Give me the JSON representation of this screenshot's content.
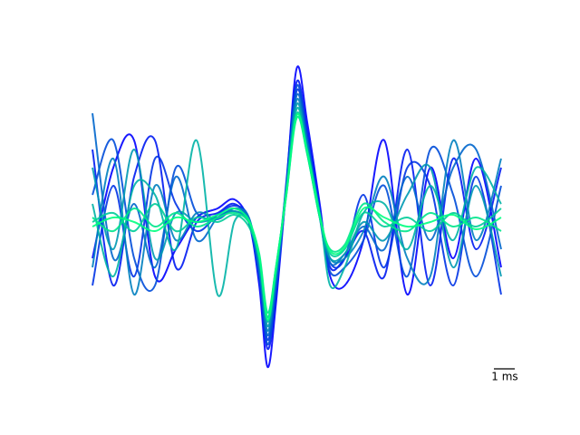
{
  "chart_data": {
    "type": "line",
    "x": [
      0,
      1.0,
      2.0,
      3.0,
      4.0,
      5.0,
      6.0,
      6.8,
      7.5,
      8.0,
      8.4,
      8.8,
      9.3,
      9.8,
      10.3,
      10.9,
      11.4,
      12.1,
      13.0,
      14.0,
      15.1,
      16.2,
      17.3,
      18.4,
      19.6
    ],
    "xlim": [
      0,
      19.6
    ],
    "ylim": [
      -200,
      200
    ],
    "scalebar": {
      "length": 1,
      "label": "1 ms"
    },
    "series": [
      {
        "color": "#0000ff",
        "values": [
          -40,
          60,
          90,
          -60,
          -30,
          5,
          15,
          25,
          0,
          -70,
          -160,
          -90,
          40,
          170,
          110,
          20,
          -60,
          -70,
          -20,
          90,
          -80,
          60,
          -40,
          70,
          -50
        ]
      },
      {
        "color": "#0019f2",
        "values": [
          80,
          -70,
          50,
          90,
          -50,
          0,
          10,
          20,
          0,
          -60,
          -140,
          -80,
          45,
          155,
          100,
          15,
          -50,
          -40,
          -10,
          -60,
          80,
          -70,
          70,
          -30,
          60
        ]
      },
      {
        "color": "#0033e6",
        "values": [
          -70,
          40,
          -60,
          70,
          20,
          -10,
          8,
          18,
          5,
          -55,
          -130,
          -70,
          40,
          145,
          95,
          10,
          -45,
          -40,
          30,
          -50,
          60,
          40,
          -70,
          50,
          -80
        ]
      },
      {
        "color": "#004cd9",
        "values": [
          30,
          90,
          -40,
          -70,
          60,
          10,
          5,
          15,
          0,
          -60,
          -135,
          -75,
          35,
          150,
          90,
          5,
          -55,
          -50,
          -20,
          40,
          -60,
          80,
          30,
          -60,
          40
        ]
      },
      {
        "color": "#0066cc",
        "values": [
          120,
          -40,
          20,
          -50,
          50,
          -20,
          5,
          12,
          0,
          -50,
          -125,
          -65,
          38,
          140,
          90,
          10,
          -45,
          -35,
          -5,
          -30,
          50,
          -20,
          60,
          80,
          -30
        ]
      },
      {
        "color": "#0080bf",
        "values": [
          -50,
          70,
          -80,
          40,
          -20,
          10,
          3,
          15,
          5,
          -50,
          -120,
          -60,
          40,
          135,
          85,
          10,
          -40,
          -40,
          -10,
          50,
          -40,
          -60,
          90,
          -20,
          70
        ]
      },
      {
        "color": "#0099b3",
        "values": [
          60,
          -30,
          80,
          -40,
          10,
          0,
          5,
          12,
          0,
          -45,
          -115,
          -60,
          35,
          130,
          80,
          5,
          -40,
          -35,
          0,
          -20,
          30,
          60,
          -50,
          40,
          -60
        ]
      },
      {
        "color": "#00b3a6",
        "values": [
          20,
          -60,
          40,
          30,
          -30,
          90,
          -80,
          0,
          0,
          -40,
          -110,
          -55,
          35,
          125,
          80,
          10,
          -70,
          -50,
          10,
          20,
          -30,
          40,
          -20,
          60,
          20
        ]
      },
      {
        "color": "#00cc99",
        "values": [
          0,
          10,
          -10,
          20,
          -10,
          5,
          0,
          8,
          -5,
          -40,
          -105,
          -50,
          30,
          120,
          75,
          5,
          -35,
          -30,
          10,
          -5,
          5,
          -10,
          10,
          -5,
          15
        ]
      },
      {
        "color": "#00e68c",
        "values": [
          5,
          -10,
          15,
          -5,
          10,
          -5,
          5,
          10,
          0,
          -35,
          -100,
          -50,
          30,
          115,
          75,
          5,
          -30,
          -25,
          20,
          0,
          -10,
          10,
          -5,
          5,
          -10
        ]
      },
      {
        "color": "#00ff80",
        "values": [
          -5,
          5,
          0,
          -10,
          5,
          0,
          8,
          15,
          2,
          -38,
          -108,
          -52,
          32,
          118,
          78,
          8,
          -32,
          -28,
          15,
          5,
          -5,
          0,
          8,
          -8,
          5
        ]
      }
    ]
  }
}
